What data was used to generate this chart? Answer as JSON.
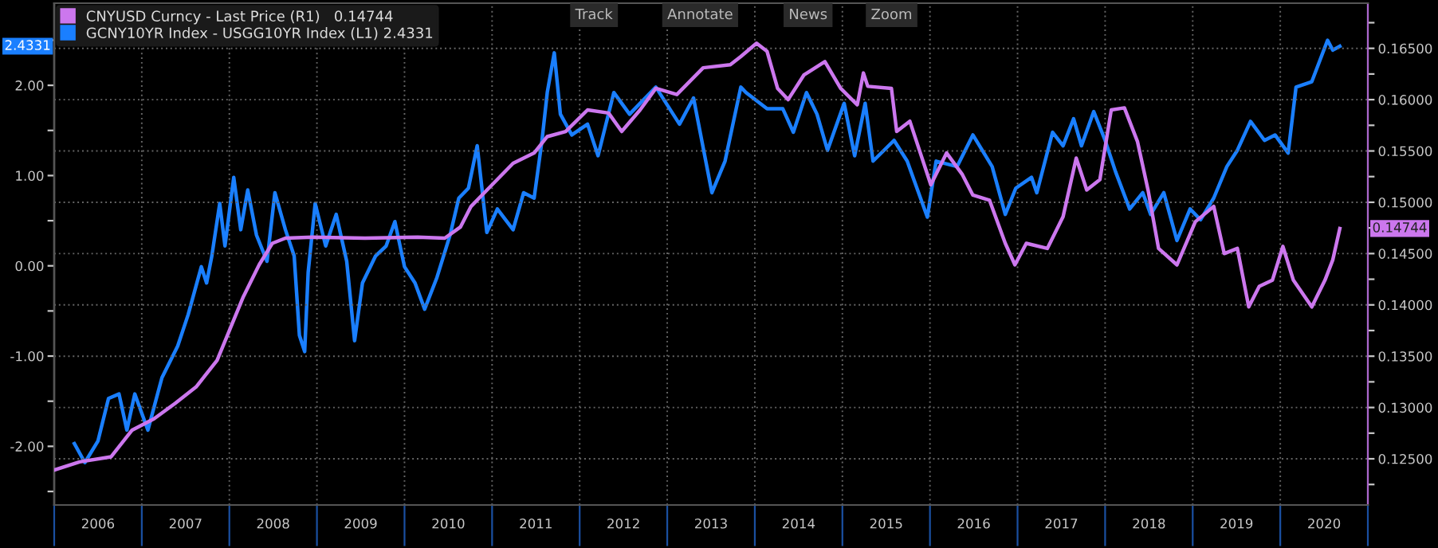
{
  "chart_data": {
    "type": "line",
    "xlim": [
      2006,
      2021
    ],
    "xticks": [
      {
        "value": 2006,
        "label": null
      },
      {
        "value": 2006.5,
        "label": "2006"
      },
      {
        "value": 2007,
        "label": null
      },
      {
        "value": 2007.5,
        "label": "2007"
      },
      {
        "value": 2008,
        "label": null
      },
      {
        "value": 2008.5,
        "label": "2008"
      },
      {
        "value": 2009,
        "label": null
      },
      {
        "value": 2009.5,
        "label": "2009"
      },
      {
        "value": 2010,
        "label": null
      },
      {
        "value": 2010.5,
        "label": "2010"
      },
      {
        "value": 2011,
        "label": null
      },
      {
        "value": 2011.5,
        "label": "2011"
      },
      {
        "value": 2012,
        "label": null
      },
      {
        "value": 2012.5,
        "label": "2012"
      },
      {
        "value": 2013,
        "label": null
      },
      {
        "value": 2013.5,
        "label": "2013"
      },
      {
        "value": 2014,
        "label": null
      },
      {
        "value": 2014.5,
        "label": "2014"
      },
      {
        "value": 2015,
        "label": null
      },
      {
        "value": 2015.5,
        "label": "2015"
      },
      {
        "value": 2016,
        "label": null
      },
      {
        "value": 2016.5,
        "label": "2016"
      },
      {
        "value": 2017,
        "label": null
      },
      {
        "value": 2017.5,
        "label": "2017"
      },
      {
        "value": 2018,
        "label": null
      },
      {
        "value": 2018.5,
        "label": "2018"
      },
      {
        "value": 2019,
        "label": null
      },
      {
        "value": 2019.5,
        "label": "2019"
      },
      {
        "value": 2020,
        "label": null
      },
      {
        "value": 2020.5,
        "label": "2020"
      },
      {
        "value": 2021,
        "label": null
      }
    ],
    "ylim": [
      -2.65,
      2.91
    ],
    "yticks": [
      {
        "value": -2.5,
        "label": null
      },
      {
        "value": -2,
        "label": "-2.00"
      },
      {
        "value": -1.5,
        "label": null
      },
      {
        "value": -1,
        "label": "-1.00"
      },
      {
        "value": -0.5,
        "label": null
      },
      {
        "value": 0,
        "label": "0.00"
      },
      {
        "value": 0.5,
        "label": null
      },
      {
        "value": 1,
        "label": "1.00"
      },
      {
        "value": 1.5,
        "label": null
      },
      {
        "value": 2,
        "label": "2.00"
      },
      {
        "value": 2.5,
        "label": null
      }
    ],
    "y2lim": [
      0.1205,
      0.1694
    ],
    "y2ticks": [
      {
        "value": 0.1225,
        "label": null
      },
      {
        "value": 0.125,
        "label": "0.12500"
      },
      {
        "value": 0.1275,
        "label": null
      },
      {
        "value": 0.13,
        "label": "0.13000"
      },
      {
        "value": 0.1325,
        "label": null
      },
      {
        "value": 0.135,
        "label": "0.13500"
      },
      {
        "value": 0.1375,
        "label": null
      },
      {
        "value": 0.14,
        "label": "0.14000"
      },
      {
        "value": 0.1425,
        "label": null
      },
      {
        "value": 0.145,
        "label": "0.14500"
      },
      {
        "value": 0.1475,
        "label": null
      },
      {
        "value": 0.15,
        "label": "0.15000"
      },
      {
        "value": 0.1525,
        "label": null
      },
      {
        "value": 0.155,
        "label": "0.15500"
      },
      {
        "value": 0.1575,
        "label": null
      },
      {
        "value": 0.16,
        "label": "0.16000"
      },
      {
        "value": 0.1625,
        "label": null
      },
      {
        "value": 0.165,
        "label": "0.16500"
      },
      {
        "value": 0.1675,
        "label": null
      }
    ],
    "grid": true,
    "legend": "top left",
    "series": [
      {
        "name": "CNYUSD Curncy - Last Price (R1)   0.14744",
        "color": "#cc77ee",
        "axis": "y2",
        "x": [
          2006.0,
          2006.29,
          2006.65,
          2006.89,
          2007.14,
          2007.38,
          2007.62,
          2007.86,
          2008.01,
          2008.16,
          2008.34,
          2008.49,
          2008.64,
          2008.95,
          2009.55,
          2010.15,
          2010.46,
          2010.64,
          2010.76,
          2011.0,
          2011.24,
          2011.48,
          2011.63,
          2011.84,
          2012.09,
          2012.33,
          2012.48,
          2012.69,
          2012.87,
          2013.11,
          2013.41,
          2013.72,
          2013.84,
          2014.02,
          2014.14,
          2014.26,
          2014.38,
          2014.56,
          2014.8,
          2014.98,
          2015.17,
          2015.24,
          2015.29,
          2015.56,
          2015.62,
          2015.77,
          2016.01,
          2016.19,
          2016.37,
          2016.49,
          2016.68,
          2016.86,
          2016.97,
          2017.1,
          2017.34,
          2017.52,
          2017.67,
          2017.79,
          2017.94,
          2018.07,
          2018.22,
          2018.37,
          2018.49,
          2018.61,
          2018.82,
          2019.03,
          2019.24,
          2019.36,
          2019.51,
          2019.64,
          2019.76,
          2019.91,
          2020.03,
          2020.15,
          2020.36,
          2020.51,
          2020.6,
          2020.68
        ],
        "values": [
          0.1239,
          0.1247,
          0.1252,
          0.1278,
          0.1289,
          0.1304,
          0.132,
          0.1346,
          0.1377,
          0.1408,
          0.1439,
          0.146,
          0.1465,
          0.1466,
          0.1465,
          0.1466,
          0.1465,
          0.1476,
          0.1496,
          0.1517,
          0.1538,
          0.1548,
          0.1564,
          0.1569,
          0.159,
          0.1587,
          0.1569,
          0.159,
          0.1611,
          0.1605,
          0.1631,
          0.1634,
          0.1642,
          0.1655,
          0.1647,
          0.1611,
          0.16,
          0.1624,
          0.1637,
          0.1611,
          0.1595,
          0.1626,
          0.1613,
          0.1611,
          0.1569,
          0.1579,
          0.1517,
          0.1548,
          0.1527,
          0.1507,
          0.1502,
          0.146,
          0.1439,
          0.146,
          0.1455,
          0.1486,
          0.1543,
          0.1512,
          0.1522,
          0.159,
          0.1592,
          0.1559,
          0.1512,
          0.1455,
          0.1439,
          0.1481,
          0.1496,
          0.145,
          0.1455,
          0.1398,
          0.1418,
          0.1424,
          0.1457,
          0.1424,
          0.1398,
          0.1424,
          0.1444,
          0.14744
        ]
      },
      {
        "name": "GCNY10YR Index - USGG10YR Index (L1) 2.4331",
        "color": "#1a7fff",
        "x": [
          2006.23,
          2006.35,
          2006.5,
          2006.62,
          2006.74,
          2006.83,
          2006.92,
          2007.07,
          2007.23,
          2007.41,
          2007.53,
          2007.68,
          2007.74,
          2007.8,
          2007.89,
          2007.95,
          2008.05,
          2008.13,
          2008.21,
          2008.31,
          2008.43,
          2008.52,
          2008.64,
          2008.74,
          2008.8,
          2008.86,
          2008.9,
          2008.98,
          2009.1,
          2009.22,
          2009.34,
          2009.43,
          2009.52,
          2009.67,
          2009.79,
          2009.89,
          2010.0,
          2010.12,
          2010.23,
          2010.37,
          2010.52,
          2010.62,
          2010.73,
          2010.83,
          2010.94,
          2011.06,
          2011.24,
          2011.36,
          2011.48,
          2011.57,
          2011.63,
          2011.71,
          2011.78,
          2011.91,
          2012.09,
          2012.21,
          2012.39,
          2012.57,
          2012.87,
          2013.14,
          2013.3,
          2013.51,
          2013.66,
          2013.84,
          2013.9,
          2014.14,
          2014.32,
          2014.44,
          2014.59,
          2014.71,
          2014.83,
          2015.02,
          2015.14,
          2015.26,
          2015.35,
          2015.59,
          2015.74,
          2015.97,
          2016.07,
          2016.31,
          2016.49,
          2016.71,
          2016.86,
          2016.98,
          2017.16,
          2017.22,
          2017.4,
          2017.52,
          2017.64,
          2017.73,
          2017.87,
          2018.0,
          2018.12,
          2018.28,
          2018.43,
          2018.52,
          2018.67,
          2018.82,
          2018.97,
          2019.09,
          2019.24,
          2019.39,
          2019.51,
          2019.66,
          2019.82,
          2019.94,
          2020.09,
          2020.18,
          2020.36,
          2020.45,
          2020.54,
          2020.6,
          2020.68
        ],
        "values": [
          -1.97,
          -2.18,
          -1.94,
          -1.47,
          -1.42,
          -1.82,
          -1.42,
          -1.82,
          -1.24,
          -0.89,
          -0.54,
          -0.01,
          -0.19,
          0.11,
          0.69,
          0.22,
          0.98,
          0.4,
          0.84,
          0.34,
          0.05,
          0.81,
          0.4,
          0.11,
          -0.77,
          -0.95,
          -0.07,
          0.69,
          0.22,
          0.57,
          0.05,
          -0.83,
          -0.19,
          0.11,
          0.22,
          0.49,
          -0.01,
          -0.19,
          -0.48,
          -0.13,
          0.34,
          0.75,
          0.86,
          1.33,
          0.37,
          0.63,
          0.4,
          0.81,
          0.75,
          1.39,
          1.92,
          2.36,
          1.68,
          1.45,
          1.57,
          1.22,
          1.92,
          1.68,
          1.98,
          1.57,
          1.86,
          0.81,
          1.16,
          1.98,
          1.92,
          1.74,
          1.74,
          1.48,
          1.92,
          1.68,
          1.28,
          1.8,
          1.22,
          1.8,
          1.16,
          1.39,
          1.16,
          0.54,
          1.16,
          1.1,
          1.45,
          1.1,
          0.57,
          0.86,
          0.98,
          0.81,
          1.48,
          1.33,
          1.63,
          1.33,
          1.71,
          1.39,
          1.04,
          0.63,
          0.81,
          0.57,
          0.81,
          0.28,
          0.63,
          0.51,
          0.75,
          1.1,
          1.28,
          1.6,
          1.39,
          1.45,
          1.25,
          1.98,
          2.04,
          2.27,
          2.5,
          2.39,
          2.4331
        ]
      }
    ],
    "annotations": [
      "0.14744",
      "2.4331",
      "Track",
      "Annotate",
      "News",
      "Zoom"
    ]
  }
}
